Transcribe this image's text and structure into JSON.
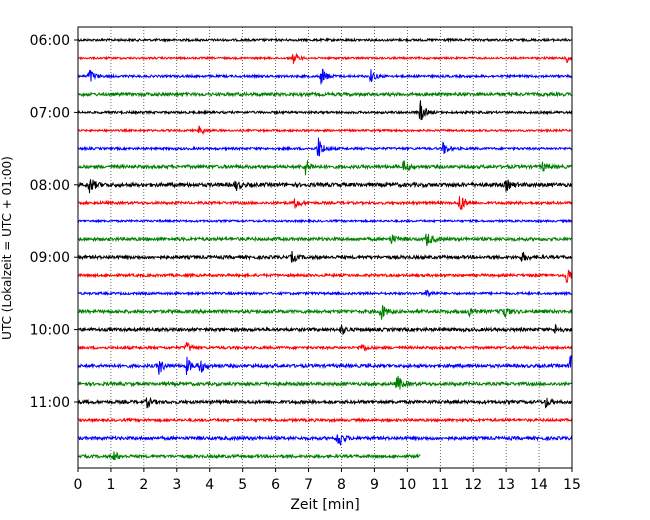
{
  "chart_data": {
    "type": "line",
    "subtype": "helicorder",
    "xlabel": "Zeit  [min]",
    "ylabel": "UTC (Lokalzeit = UTC + 01:00)",
    "xlim": [
      0,
      15
    ],
    "xticks": [
      "0",
      "1",
      "2",
      "3",
      "4",
      "5",
      "6",
      "7",
      "8",
      "9",
      "10",
      "11",
      "12",
      "13",
      "14",
      "15"
    ],
    "grid": "vertical dotted",
    "line_minutes": 15,
    "row_labels": [
      {
        "row": 0,
        "label": "06:00"
      },
      {
        "row": 4,
        "label": "07:00"
      },
      {
        "row": 8,
        "label": "08:00"
      },
      {
        "row": 12,
        "label": "09:00"
      },
      {
        "row": 16,
        "label": "10:00"
      },
      {
        "row": 20,
        "label": "11:00"
      }
    ],
    "color_cycle": [
      "#000000",
      "#ff0000",
      "#0000ff",
      "#008000"
    ],
    "rows": [
      {
        "noise": 0.7,
        "end": 15,
        "events": []
      },
      {
        "noise": 0.6,
        "end": 15,
        "events": [
          [
            6.55,
            3.5
          ],
          [
            14.85,
            3.0
          ]
        ]
      },
      {
        "noise": 0.7,
        "end": 15,
        "events": [
          [
            0.35,
            5.0
          ],
          [
            7.4,
            6.0
          ],
          [
            8.9,
            4.0
          ]
        ]
      },
      {
        "noise": 1.0,
        "end": 15,
        "events": []
      },
      {
        "noise": 0.7,
        "end": 15,
        "events": [
          [
            10.4,
            7.0
          ]
        ]
      },
      {
        "noise": 0.6,
        "end": 15,
        "events": [
          [
            3.7,
            3.5
          ]
        ]
      },
      {
        "noise": 0.7,
        "end": 15,
        "events": [
          [
            7.3,
            7.5
          ],
          [
            11.1,
            4.0
          ]
        ]
      },
      {
        "noise": 1.0,
        "end": 15,
        "events": [
          [
            6.9,
            5.5
          ],
          [
            9.9,
            4.0
          ],
          [
            14.1,
            3.0
          ]
        ]
      },
      {
        "noise": 1.2,
        "end": 15,
        "events": [
          [
            0.35,
            5.5
          ],
          [
            4.8,
            3.0
          ],
          [
            13.0,
            3.5
          ]
        ]
      },
      {
        "noise": 0.8,
        "end": 15,
        "events": [
          [
            6.6,
            3.5
          ],
          [
            11.6,
            6.5
          ]
        ]
      },
      {
        "noise": 0.6,
        "end": 15,
        "events": []
      },
      {
        "noise": 1.0,
        "end": 15,
        "events": [
          [
            9.5,
            3.0
          ],
          [
            10.6,
            4.5
          ]
        ]
      },
      {
        "noise": 1.0,
        "end": 15,
        "events": [
          [
            6.5,
            3.0
          ],
          [
            13.5,
            3.0
          ]
        ]
      },
      {
        "noise": 0.8,
        "end": 15,
        "events": [
          [
            14.85,
            6.0
          ]
        ]
      },
      {
        "noise": 0.7,
        "end": 15,
        "events": [
          [
            10.6,
            3.0
          ]
        ]
      },
      {
        "noise": 1.0,
        "end": 15,
        "events": [
          [
            9.2,
            5.5
          ],
          [
            12.9,
            5.5
          ],
          [
            11.9,
            3.0
          ]
        ]
      },
      {
        "noise": 1.0,
        "end": 15,
        "events": [
          [
            8.0,
            3.0
          ],
          [
            14.5,
            3.0
          ]
        ]
      },
      {
        "noise": 0.8,
        "end": 15,
        "events": [
          [
            3.3,
            3.5
          ],
          [
            8.6,
            3.0
          ]
        ]
      },
      {
        "noise": 1.0,
        "end": 15,
        "events": [
          [
            2.45,
            5.5
          ],
          [
            3.3,
            5.0
          ],
          [
            3.7,
            5.0
          ],
          [
            14.95,
            8.0
          ]
        ]
      },
      {
        "noise": 1.0,
        "end": 15,
        "events": [
          [
            9.7,
            5.5
          ]
        ]
      },
      {
        "noise": 1.0,
        "end": 15,
        "events": [
          [
            2.1,
            3.0
          ],
          [
            14.2,
            3.0
          ]
        ]
      },
      {
        "noise": 0.8,
        "end": 15,
        "events": []
      },
      {
        "noise": 1.0,
        "end": 15,
        "events": [
          [
            7.9,
            6.5
          ]
        ]
      },
      {
        "noise": 0.9,
        "end": 10.4,
        "events": [
          [
            1.1,
            3.0
          ]
        ]
      }
    ]
  }
}
